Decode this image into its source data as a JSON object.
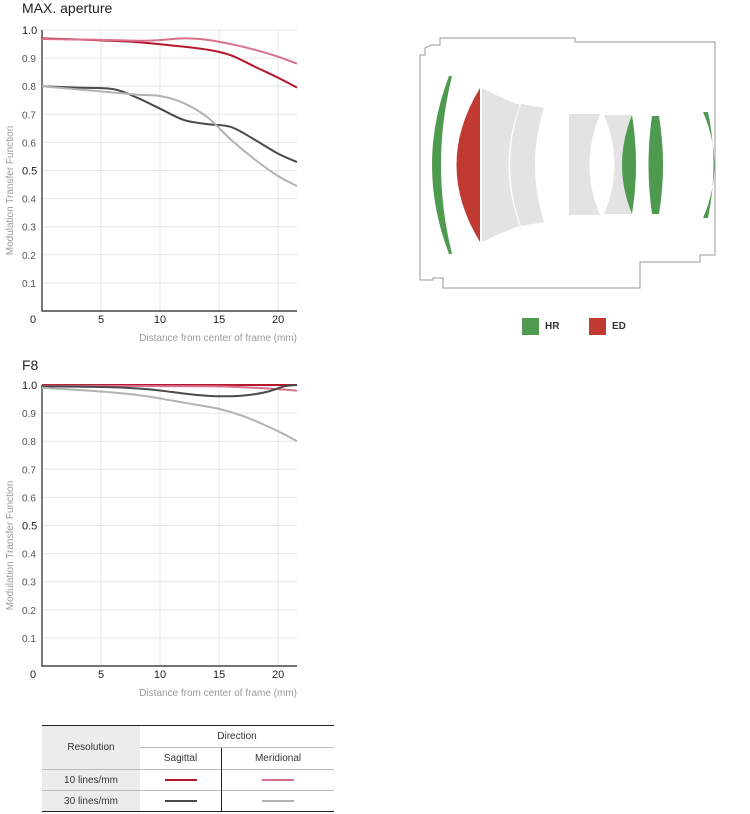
{
  "chart_data": [
    {
      "type": "line",
      "title": "MAX. aperture",
      "xlabel": "Distance from center of frame (mm)",
      "ylabel": "Modulation Transfer Function",
      "xlim": [
        0,
        21.6
      ],
      "ylim": [
        0,
        1.0
      ],
      "xticks": [
        "0",
        "5",
        "10",
        "15",
        "20"
      ],
      "yticks": [
        "0.1",
        "0.2",
        "0.3",
        "0.4",
        "0.5",
        "0.6",
        "0.7",
        "0.8",
        "0.9",
        "1.0"
      ],
      "grid": true,
      "series": [
        {
          "name": "10 lines/mm Sagittal",
          "color": "#b5172c",
          "x": [
            0,
            4,
            8,
            11,
            14,
            16,
            18,
            20,
            21.6
          ],
          "y": [
            0.97,
            0.965,
            0.957,
            0.945,
            0.93,
            0.91,
            0.87,
            0.83,
            0.795
          ]
        },
        {
          "name": "10 lines/mm Meridional",
          "color": "#d9708b",
          "x": [
            0,
            5,
            9,
            12,
            14,
            16,
            18,
            20,
            21.6
          ],
          "y": [
            0.968,
            0.965,
            0.962,
            0.97,
            0.965,
            0.95,
            0.93,
            0.905,
            0.88
          ]
        },
        {
          "name": "30 lines/mm Sagittal",
          "color": "#4a4a4a",
          "x": [
            0,
            3,
            6,
            8,
            10,
            12,
            14,
            16,
            18,
            20,
            21.6
          ],
          "y": [
            0.8,
            0.795,
            0.79,
            0.76,
            0.72,
            0.68,
            0.665,
            0.655,
            0.61,
            0.56,
            0.53
          ]
        },
        {
          "name": "30 lines/mm Meridional",
          "color": "#b3b3b3",
          "x": [
            0,
            4,
            8,
            10,
            12,
            14,
            16,
            18,
            20,
            21.6
          ],
          "y": [
            0.8,
            0.785,
            0.77,
            0.765,
            0.74,
            0.69,
            0.61,
            0.54,
            0.48,
            0.445
          ]
        }
      ]
    },
    {
      "type": "line",
      "title": "F8",
      "xlabel": "Distance from center of frame (mm)",
      "ylabel": "Modulation Transfer Function",
      "xlim": [
        0,
        21.6
      ],
      "ylim": [
        0,
        1.0
      ],
      "xticks": [
        "0",
        "5",
        "10",
        "15",
        "20"
      ],
      "yticks": [
        "0.1",
        "0.2",
        "0.3",
        "0.4",
        "0.5",
        "0.6",
        "0.7",
        "0.8",
        "0.9",
        "1.0"
      ],
      "grid": true,
      "series": [
        {
          "name": "10 lines/mm Sagittal",
          "color": "#b5172c",
          "x": [
            0,
            5,
            10,
            15,
            20,
            21.6
          ],
          "y": [
            1.0,
            1.0,
            1.0,
            1.0,
            1.0,
            1.0
          ]
        },
        {
          "name": "10 lines/mm Meridional",
          "color": "#d9708b",
          "x": [
            0,
            5,
            10,
            15,
            18,
            20,
            21.6
          ],
          "y": [
            0.997,
            0.997,
            0.996,
            0.995,
            0.99,
            0.985,
            0.98
          ]
        },
        {
          "name": "30 lines/mm Sagittal",
          "color": "#4a4a4a",
          "x": [
            0,
            3,
            6,
            9,
            11,
            13,
            15,
            17,
            19,
            20.5,
            21.6
          ],
          "y": [
            0.995,
            0.994,
            0.992,
            0.985,
            0.975,
            0.965,
            0.96,
            0.962,
            0.975,
            0.995,
            1.0
          ]
        },
        {
          "name": "30 lines/mm Meridional",
          "color": "#b3b3b3",
          "x": [
            0,
            4,
            8,
            11,
            13,
            15,
            17,
            19,
            20.5,
            21.6
          ],
          "y": [
            0.99,
            0.98,
            0.965,
            0.945,
            0.93,
            0.915,
            0.89,
            0.855,
            0.825,
            0.8
          ]
        }
      ]
    }
  ],
  "legend_table": {
    "resolution_header": "Resolution",
    "direction_header": "Direction",
    "sagittal_header": "Sagittal",
    "meridional_header": "Meridional",
    "rows": [
      {
        "label": "10 lines/mm",
        "sagittal_color": "#b5172c",
        "meridional_color": "#d9708b"
      },
      {
        "label": "30 lines/mm",
        "sagittal_color": "#4a4a4a",
        "meridional_color": "#b3b3b3"
      }
    ]
  },
  "lens_diagram": {
    "legend": [
      {
        "label": "HR",
        "color": "#4e9a4f"
      },
      {
        "label": "ED",
        "color": "#c13a32"
      }
    ],
    "element_colors": {
      "hr": "#4e9a4f",
      "ed": "#c13a32",
      "plain": "#e3e3e3",
      "outline": "#999999"
    }
  }
}
